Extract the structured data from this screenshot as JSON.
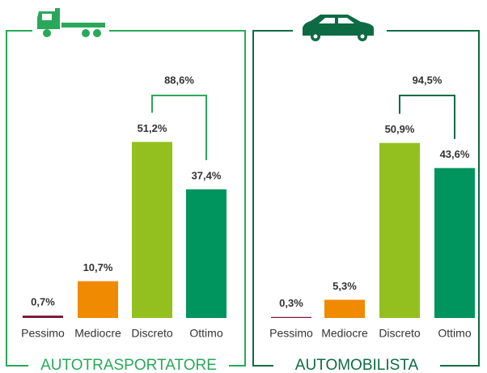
{
  "chart_data": [
    {
      "type": "bar",
      "title": "AUTOTRASPORTATORE",
      "color": "#2aa85a",
      "categories": [
        "Pessimo",
        "Mediocre",
        "Discreto",
        "Ottimo"
      ],
      "values": [
        0.7,
        10.7,
        51.2,
        37.4
      ],
      "value_labels": [
        "0,7%",
        "10,7%",
        "51,2%",
        "37,4%"
      ],
      "colors": [
        "#7b1b3c",
        "#f08a00",
        "#93c01f",
        "#00955e"
      ],
      "annotation": "88,6%"
    },
    {
      "type": "bar",
      "title": "AUTOMOBILISTA",
      "color": "#0d6b44",
      "categories": [
        "Pessimo",
        "Mediocre",
        "Discreto",
        "Ottimo"
      ],
      "values": [
        0.3,
        5.3,
        50.9,
        43.6
      ],
      "value_labels": [
        "0,3%",
        "5,3%",
        "50,9%",
        "43,6%"
      ],
      "colors": [
        "#7b1b3c",
        "#f08a00",
        "#93c01f",
        "#00955e"
      ],
      "annotation": "94,5%"
    }
  ]
}
